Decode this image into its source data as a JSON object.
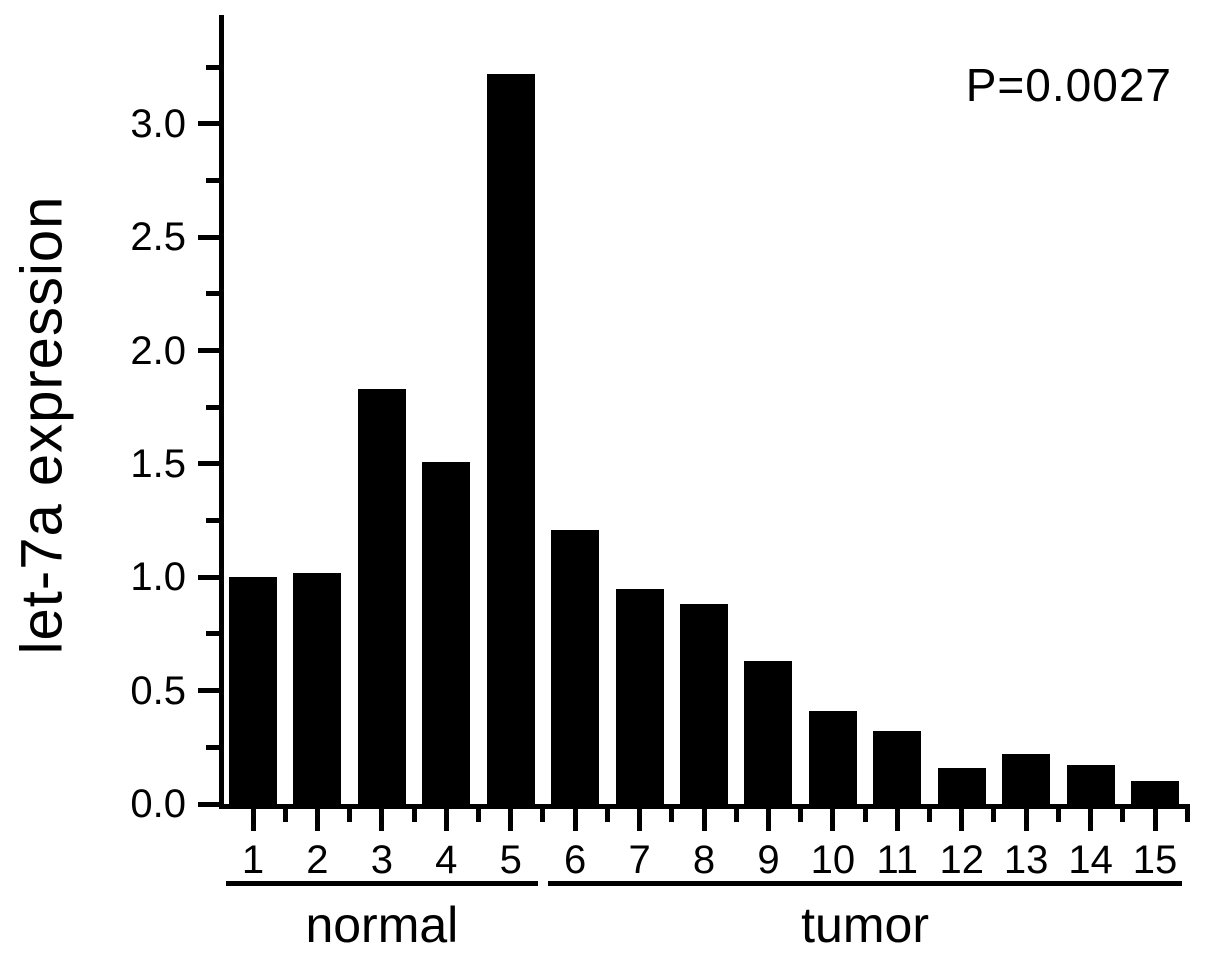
{
  "chart_data": {
    "type": "bar",
    "title": "",
    "xlabel": "",
    "ylabel": "let-7a expression",
    "annotation": "P=0.0027",
    "categories": [
      "1",
      "2",
      "3",
      "4",
      "5",
      "6",
      "7",
      "8",
      "9",
      "10",
      "11",
      "12",
      "13",
      "14",
      "15"
    ],
    "values": [
      1.0,
      1.02,
      1.83,
      1.51,
      3.22,
      1.21,
      0.95,
      0.88,
      0.63,
      0.41,
      0.32,
      0.16,
      0.22,
      0.17,
      0.1
    ],
    "groups": [
      {
        "label": "normal",
        "start_index": 0,
        "end_index": 4
      },
      {
        "label": "tumor",
        "start_index": 5,
        "end_index": 14
      }
    ],
    "yticks": [
      0.0,
      0.5,
      1.0,
      1.5,
      2.0,
      2.5,
      3.0
    ],
    "ytick_labels": [
      "0.0",
      "0.5",
      "1.0",
      "1.5",
      "2.0",
      "2.5",
      "3.0"
    ],
    "minor_tick_step": 0.25,
    "ylim": [
      0,
      3.48
    ],
    "grid": false,
    "legend": null,
    "bar_color": "#000000",
    "background_color": "#ffffff",
    "text_color": "#000000"
  }
}
